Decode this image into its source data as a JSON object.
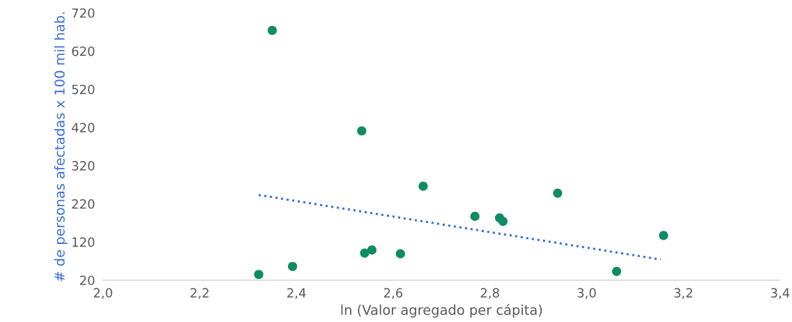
{
  "chart_data": {
    "type": "scatter",
    "xlabel": "ln (Valor agregado per cápita)",
    "ylabel": "# de personas afectadas x 100 mil hab.",
    "xlim": [
      2.0,
      3.4
    ],
    "xticks": [
      {
        "value": 2.0,
        "label": "2,0"
      },
      {
        "value": 2.2,
        "label": "2,2"
      },
      {
        "value": 2.4,
        "label": "2,4"
      },
      {
        "value": 2.6,
        "label": "2,6"
      },
      {
        "value": 2.8,
        "label": "2,8"
      },
      {
        "value": 3.0,
        "label": "3,0"
      },
      {
        "value": 3.2,
        "label": "3,2"
      },
      {
        "value": 3.4,
        "label": "3,4"
      }
    ],
    "ylim": [
      20,
      720
    ],
    "yticks": [
      20,
      120,
      220,
      320,
      420,
      520,
      620,
      720
    ],
    "grid": false,
    "legend": false,
    "marker": "circle",
    "series": [
      {
        "color": "#0e8c63",
        "x": [
          2.322,
          2.35,
          2.392,
          2.535,
          2.541,
          2.556,
          2.615,
          2.662,
          2.769,
          2.82,
          2.827,
          2.94,
          3.062,
          3.159
        ],
        "values": [
          35,
          674,
          56,
          411,
          91,
          99,
          89,
          266,
          187,
          183,
          174,
          248,
          43,
          137
        ]
      },
      {
        "type": "line",
        "color": "#3a6fd8",
        "line_style": "dotted",
        "marker": "none",
        "x": [
          2.322,
          3.153
        ],
        "values": [
          243,
          74
        ]
      }
    ]
  }
}
